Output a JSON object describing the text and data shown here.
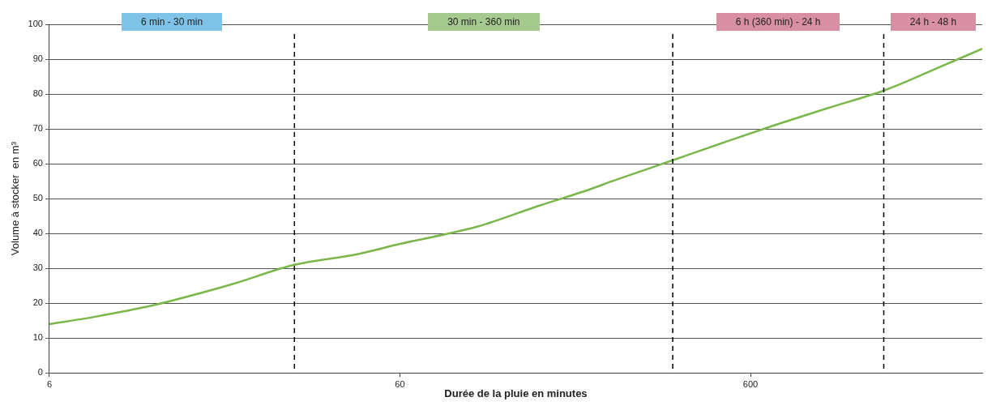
{
  "chart_data": {
    "type": "line",
    "xlabel": "Durée de la pluie en minutes",
    "ylabel": "Volume à stocker  en m³",
    "x": [
      6,
      8,
      12,
      15,
      20,
      30,
      45,
      60,
      100,
      150,
      200,
      250,
      360,
      500,
      700,
      1000,
      1440,
      2000,
      2750
    ],
    "series": [
      {
        "color": "#7ab648",
        "values": [
          14,
          16,
          19.5,
          22,
          25.5,
          31,
          34,
          37,
          42,
          48,
          52,
          55.5,
          61,
          66,
          71,
          76,
          81,
          87,
          93
        ]
      }
    ],
    "log": "x",
    "xlim": [
      6,
      2750
    ],
    "xticks": [
      6,
      60,
      600
    ],
    "ylim": [
      0,
      100
    ],
    "yticks": [
      0,
      10,
      20,
      30,
      40,
      50,
      60,
      70,
      80,
      90,
      100
    ],
    "grid": "y",
    "legend": false,
    "marker": "none",
    "line_style": "solid",
    "ref_lines": [
      {
        "axis": "x",
        "value": 30,
        "color": "#000000",
        "line_style": "dashed"
      },
      {
        "axis": "x",
        "value": 360,
        "color": "#000000",
        "line_style": "dashed"
      },
      {
        "axis": "x",
        "value": 1440,
        "color": "#000000",
        "line_style": "dashed"
      }
    ],
    "annotations": [
      "6 min - 30 min",
      "30 min - 360 min",
      "6 h (360 min) - 24 h",
      "24 h - 48 h"
    ]
  }
}
